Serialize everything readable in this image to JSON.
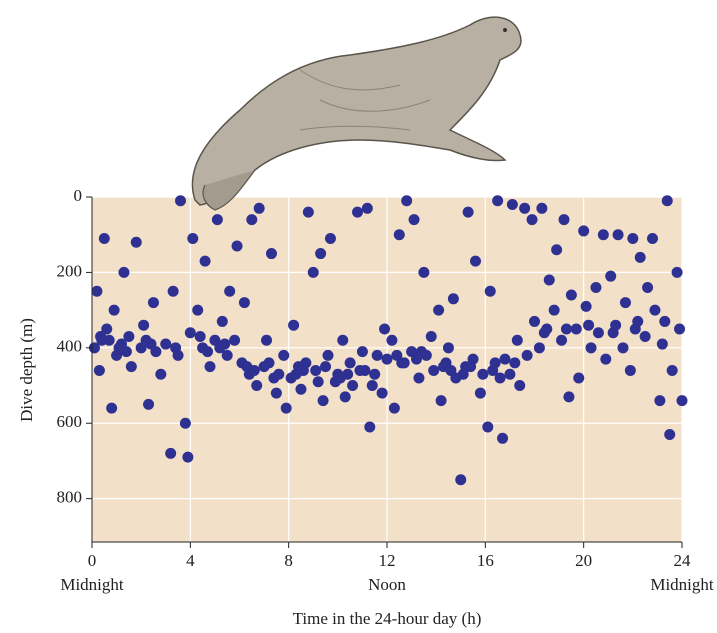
{
  "chart_data": {
    "type": "scatter",
    "xlabel": "Time in the 24-hour day (h)",
    "ylabel": "Dive depth (m)",
    "xlim": [
      0,
      24
    ],
    "xticks": [
      0,
      4,
      8,
      12,
      16,
      20,
      24
    ],
    "xtick_sublabels": [
      {
        "value": 0,
        "label": "Midnight"
      },
      {
        "value": 12,
        "label": "Noon"
      },
      {
        "value": 24,
        "label": "Midnight"
      }
    ],
    "ylim": [
      0,
      915
    ],
    "yticks": [
      0,
      200,
      400,
      600,
      800
    ],
    "y_inverted": true,
    "grid": true,
    "color": "#2e3192",
    "background": "#f3e0c8",
    "x": [
      0.1,
      0.2,
      0.3,
      0.4,
      0.5,
      0.6,
      0.8,
      0.9,
      1.0,
      1.2,
      1.3,
      1.5,
      1.6,
      1.8,
      2.0,
      2.1,
      2.3,
      2.5,
      2.6,
      2.8,
      3.0,
      3.2,
      3.3,
      3.5,
      3.6,
      3.8,
      3.9,
      4.0,
      4.1,
      4.3,
      4.5,
      4.6,
      4.8,
      5.0,
      5.1,
      5.3,
      5.5,
      5.6,
      5.8,
      5.9,
      6.1,
      6.2,
      6.4,
      6.5,
      6.7,
      6.8,
      7.0,
      7.1,
      7.3,
      7.5,
      7.6,
      7.8,
      7.9,
      8.1,
      8.2,
      8.4,
      8.5,
      8.7,
      8.8,
      9.0,
      9.1,
      9.3,
      9.4,
      9.6,
      9.7,
      9.9,
      10.0,
      10.2,
      10.3,
      10.5,
      10.6,
      10.8,
      10.9,
      11.0,
      11.2,
      11.3,
      11.5,
      11.6,
      11.8,
      11.9,
      12.0,
      12.2,
      12.3,
      12.5,
      12.6,
      12.8,
      13.0,
      13.1,
      13.3,
      13.5,
      13.6,
      13.8,
      13.9,
      14.1,
      14.2,
      14.4,
      14.5,
      14.7,
      14.8,
      15.0,
      15.2,
      15.3,
      15.5,
      15.6,
      15.8,
      15.9,
      16.1,
      16.2,
      16.4,
      16.5,
      16.7,
      16.8,
      17.0,
      17.1,
      17.3,
      17.4,
      17.6,
      17.7,
      17.9,
      18.0,
      18.2,
      18.3,
      18.5,
      18.6,
      18.8,
      18.9,
      19.1,
      19.2,
      19.4,
      19.5,
      19.7,
      19.8,
      20.0,
      20.1,
      20.3,
      20.5,
      20.6,
      20.8,
      20.9,
      21.1,
      21.3,
      21.4,
      21.6,
      21.7,
      21.9,
      22.0,
      22.2,
      22.3,
      22.5,
      22.6,
      22.8,
      22.9,
      23.1,
      23.2,
      23.4,
      23.5,
      23.6,
      23.8,
      23.9,
      24.0,
      0.7,
      1.4,
      2.4,
      3.4,
      4.4,
      5.2,
      6.6,
      7.2,
      8.3,
      9.5,
      10.1,
      11.1,
      12.4,
      13.2,
      14.3,
      15.1,
      16.3,
      17.2,
      18.4,
      19.3,
      20.2,
      21.2,
      22.1,
      23.3,
      0.35,
      1.1,
      2.2,
      4.7,
      5.4,
      6.3,
      7.4,
      8.6,
      9.2,
      10.4,
      11.4,
      12.7,
      13.4,
      14.6,
      15.4,
      16.6
    ],
    "y": [
      400,
      250,
      460,
      380,
      110,
      350,
      560,
      300,
      420,
      390,
      200,
      370,
      450,
      120,
      400,
      340,
      550,
      280,
      410,
      470,
      390,
      680,
      250,
      420,
      10,
      600,
      690,
      360,
      110,
      300,
      400,
      170,
      450,
      380,
      60,
      330,
      420,
      250,
      380,
      130,
      440,
      280,
      470,
      60,
      500,
      30,
      450,
      380,
      150,
      520,
      470,
      420,
      560,
      480,
      340,
      450,
      510,
      440,
      40,
      200,
      460,
      150,
      540,
      420,
      110,
      490,
      470,
      380,
      530,
      440,
      500,
      40,
      460,
      410,
      30,
      610,
      470,
      420,
      520,
      350,
      430,
      380,
      560,
      100,
      440,
      10,
      410,
      60,
      480,
      200,
      420,
      370,
      460,
      300,
      540,
      440,
      400,
      270,
      480,
      750,
      450,
      40,
      430,
      170,
      520,
      470,
      610,
      250,
      440,
      10,
      640,
      430,
      470,
      20,
      380,
      500,
      30,
      420,
      60,
      330,
      400,
      30,
      350,
      220,
      300,
      140,
      380,
      60,
      530,
      260,
      350,
      480,
      90,
      290,
      400,
      240,
      360,
      100,
      430,
      210,
      340,
      100,
      400,
      280,
      460,
      110,
      330,
      160,
      370,
      240,
      110,
      300,
      540,
      390,
      10,
      630,
      460,
      200,
      350,
      540,
      380,
      410,
      390,
      400,
      370,
      400,
      460,
      440,
      470,
      450,
      480,
      460,
      420,
      430,
      450,
      470,
      460,
      440,
      360,
      350,
      340,
      360,
      350,
      330,
      370,
      400,
      380,
      410,
      390,
      450,
      480,
      460,
      490,
      470,
      500,
      440,
      410,
      460,
      450,
      480
    ]
  }
}
